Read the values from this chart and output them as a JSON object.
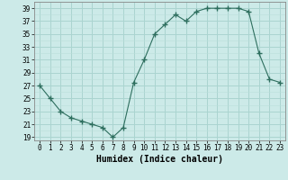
{
  "x": [
    0,
    1,
    2,
    3,
    4,
    5,
    6,
    7,
    8,
    9,
    10,
    11,
    12,
    13,
    14,
    15,
    16,
    17,
    18,
    19,
    20,
    21,
    22,
    23
  ],
  "y": [
    27,
    25,
    23,
    22,
    21.5,
    21,
    20.5,
    19,
    20.5,
    27.5,
    31,
    35,
    36.5,
    38,
    37,
    38.5,
    39,
    39,
    39,
    39,
    38.5,
    32,
    28,
    27.5
  ],
  "line_color": "#2d6e5e",
  "marker": "+",
  "marker_size": 4,
  "bg_color": "#cceae8",
  "grid_major_color": "#aad4d0",
  "grid_minor_color": "#bbdeda",
  "xlabel": "Humidex (Indice chaleur)",
  "xlim": [
    -0.5,
    23.5
  ],
  "ylim": [
    18.5,
    40
  ],
  "yticks": [
    19,
    21,
    23,
    25,
    27,
    29,
    31,
    33,
    35,
    37,
    39
  ],
  "xticks": [
    0,
    1,
    2,
    3,
    4,
    5,
    6,
    7,
    8,
    9,
    10,
    11,
    12,
    13,
    14,
    15,
    16,
    17,
    18,
    19,
    20,
    21,
    22,
    23
  ],
  "tick_fontsize": 5.5,
  "label_fontsize": 7
}
